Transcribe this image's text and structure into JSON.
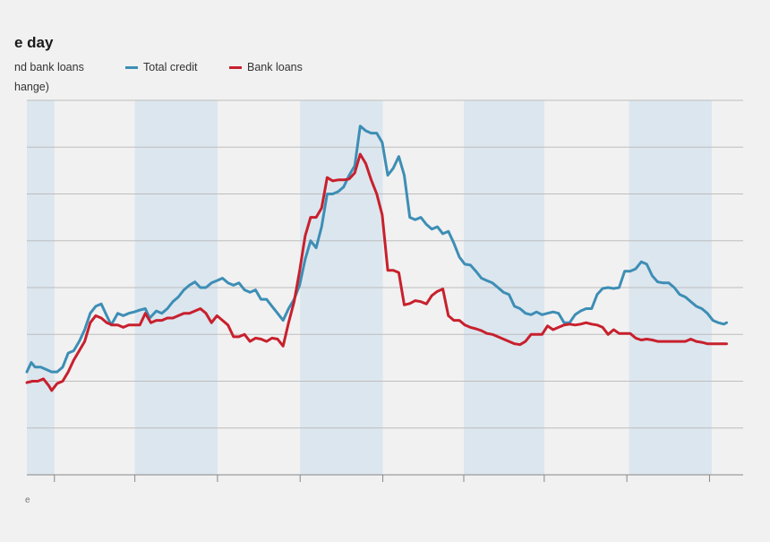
{
  "header": {
    "title": "e day",
    "legend_desc": "nd bank loans",
    "legend_unit": "hange)"
  },
  "footer": {
    "source": "e"
  },
  "colors": {
    "total_credit": "#3d8eb5",
    "bank_loans": "#c8202d",
    "shade": "#dce6ee",
    "grid": "#bdbdbd"
  },
  "chart_data": {
    "type": "line",
    "title": "e day",
    "xlabel": "",
    "ylabel": "",
    "x_range": [
      0,
      130
    ],
    "ylim": [
      0,
      8
    ],
    "grid_y": [
      1,
      2,
      3,
      4,
      5,
      6,
      7,
      8
    ],
    "x_ticks": [
      5,
      19.6,
      34.6,
      49.6,
      64.6,
      79.3,
      93.9,
      108.9,
      123.9
    ],
    "shaded_periods": [
      [
        0,
        5
      ],
      [
        19.6,
        34.6
      ],
      [
        49.6,
        64.6
      ],
      [
        79.3,
        93.9
      ],
      [
        109.3,
        124.3
      ]
    ],
    "series": [
      {
        "name": "Total credit",
        "color": "#3d8eb5",
        "values": [
          [
            0,
            2.2
          ],
          [
            0.8,
            2.4
          ],
          [
            1.5,
            2.3
          ],
          [
            2.5,
            2.3
          ],
          [
            3.5,
            2.25
          ],
          [
            4.5,
            2.2
          ],
          [
            5.5,
            2.2
          ],
          [
            6.5,
            2.3
          ],
          [
            7.5,
            2.6
          ],
          [
            8.5,
            2.65
          ],
          [
            9.5,
            2.85
          ],
          [
            10.5,
            3.1
          ],
          [
            11.5,
            3.45
          ],
          [
            12.5,
            3.6
          ],
          [
            13.5,
            3.65
          ],
          [
            14.5,
            3.4
          ],
          [
            15.3,
            3.2
          ],
          [
            16.5,
            3.45
          ],
          [
            17.5,
            3.4
          ],
          [
            18.5,
            3.45
          ],
          [
            19.5,
            3.48
          ],
          [
            20.5,
            3.52
          ],
          [
            21.5,
            3.55
          ],
          [
            22.3,
            3.35
          ],
          [
            23.5,
            3.5
          ],
          [
            24.5,
            3.45
          ],
          [
            25.5,
            3.55
          ],
          [
            26.5,
            3.7
          ],
          [
            27.5,
            3.8
          ],
          [
            28.5,
            3.95
          ],
          [
            29.5,
            4.05
          ],
          [
            30.5,
            4.12
          ],
          [
            31.5,
            4.0
          ],
          [
            32.5,
            4.0
          ],
          [
            33.5,
            4.1
          ],
          [
            34.5,
            4.15
          ],
          [
            35.5,
            4.2
          ],
          [
            36.5,
            4.1
          ],
          [
            37.5,
            4.05
          ],
          [
            38.5,
            4.1
          ],
          [
            39.5,
            3.95
          ],
          [
            40.5,
            3.9
          ],
          [
            41.5,
            3.95
          ],
          [
            42.5,
            3.75
          ],
          [
            43.5,
            3.75
          ],
          [
            44.5,
            3.6
          ],
          [
            45.5,
            3.45
          ],
          [
            46.5,
            3.3
          ],
          [
            47.5,
            3.55
          ],
          [
            48.5,
            3.75
          ],
          [
            49.5,
            4.05
          ],
          [
            50.5,
            4.6
          ],
          [
            51.5,
            5.0
          ],
          [
            52.5,
            4.85
          ],
          [
            53.5,
            5.3
          ],
          [
            54.5,
            6.0
          ],
          [
            55.5,
            6.0
          ],
          [
            56.5,
            6.05
          ],
          [
            57.5,
            6.15
          ],
          [
            58.5,
            6.4
          ],
          [
            59.5,
            6.6
          ],
          [
            60.5,
            7.45
          ],
          [
            61.5,
            7.35
          ],
          [
            62.5,
            7.3
          ],
          [
            63.5,
            7.3
          ],
          [
            64.5,
            7.1
          ],
          [
            65.5,
            6.4
          ],
          [
            66.5,
            6.55
          ],
          [
            67.5,
            6.8
          ],
          [
            68.5,
            6.4
          ],
          [
            69.5,
            5.5
          ],
          [
            70.5,
            5.45
          ],
          [
            71.5,
            5.5
          ],
          [
            72.5,
            5.35
          ],
          [
            73.5,
            5.25
          ],
          [
            74.5,
            5.3
          ],
          [
            75.5,
            5.15
          ],
          [
            76.5,
            5.2
          ],
          [
            77.5,
            4.95
          ],
          [
            78.5,
            4.65
          ],
          [
            79.5,
            4.5
          ],
          [
            80.5,
            4.48
          ],
          [
            81.5,
            4.35
          ],
          [
            82.5,
            4.2
          ],
          [
            83.5,
            4.15
          ],
          [
            84.5,
            4.1
          ],
          [
            85.5,
            4.0
          ],
          [
            86.5,
            3.9
          ],
          [
            87.5,
            3.85
          ],
          [
            88.5,
            3.6
          ],
          [
            89.5,
            3.55
          ],
          [
            90.5,
            3.45
          ],
          [
            91.5,
            3.42
          ],
          [
            92.5,
            3.48
          ],
          [
            93.5,
            3.42
          ],
          [
            94.5,
            3.45
          ],
          [
            95.5,
            3.48
          ],
          [
            96.5,
            3.45
          ],
          [
            97.5,
            3.25
          ],
          [
            98.5,
            3.25
          ],
          [
            99.5,
            3.42
          ],
          [
            100.5,
            3.5
          ],
          [
            101.5,
            3.55
          ],
          [
            102.5,
            3.55
          ],
          [
            103.5,
            3.85
          ],
          [
            104.5,
            3.98
          ],
          [
            105.5,
            4.0
          ],
          [
            106.5,
            3.98
          ],
          [
            107.5,
            4.0
          ],
          [
            108.5,
            4.35
          ],
          [
            109.5,
            4.35
          ],
          [
            110.5,
            4.4
          ],
          [
            111.5,
            4.55
          ],
          [
            112.5,
            4.5
          ],
          [
            113.5,
            4.25
          ],
          [
            114.5,
            4.12
          ],
          [
            115.5,
            4.1
          ],
          [
            116.5,
            4.1
          ],
          [
            117.5,
            4.0
          ],
          [
            118.5,
            3.85
          ],
          [
            119.5,
            3.8
          ],
          [
            120.5,
            3.7
          ],
          [
            121.5,
            3.6
          ],
          [
            122.5,
            3.55
          ],
          [
            123.5,
            3.45
          ],
          [
            124.5,
            3.3
          ],
          [
            125.5,
            3.25
          ],
          [
            126.5,
            3.22
          ],
          [
            127,
            3.25
          ]
        ]
      },
      {
        "name": "Bank loans",
        "color": "#c8202d",
        "values": [
          [
            0,
            1.97
          ],
          [
            1,
            2.0
          ],
          [
            2,
            2.0
          ],
          [
            3,
            2.05
          ],
          [
            4,
            1.9
          ],
          [
            4.5,
            1.8
          ],
          [
            5.5,
            1.95
          ],
          [
            6.5,
            2.0
          ],
          [
            7.5,
            2.2
          ],
          [
            8.5,
            2.45
          ],
          [
            9.5,
            2.65
          ],
          [
            10.5,
            2.85
          ],
          [
            11.5,
            3.25
          ],
          [
            12.5,
            3.4
          ],
          [
            13.5,
            3.35
          ],
          [
            14.5,
            3.25
          ],
          [
            15.5,
            3.2
          ],
          [
            16.5,
            3.2
          ],
          [
            17.5,
            3.15
          ],
          [
            18.5,
            3.2
          ],
          [
            19.5,
            3.2
          ],
          [
            20.5,
            3.2
          ],
          [
            21.5,
            3.45
          ],
          [
            22.5,
            3.25
          ],
          [
            23.5,
            3.3
          ],
          [
            24.5,
            3.3
          ],
          [
            25.5,
            3.35
          ],
          [
            26.5,
            3.35
          ],
          [
            27.5,
            3.4
          ],
          [
            28.5,
            3.45
          ],
          [
            29.5,
            3.45
          ],
          [
            30.5,
            3.5
          ],
          [
            31.5,
            3.55
          ],
          [
            32.5,
            3.45
          ],
          [
            33.5,
            3.25
          ],
          [
            34.5,
            3.4
          ],
          [
            35.5,
            3.3
          ],
          [
            36.5,
            3.2
          ],
          [
            37.5,
            2.95
          ],
          [
            38.5,
            2.95
          ],
          [
            39.5,
            3.0
          ],
          [
            40.5,
            2.85
          ],
          [
            41.5,
            2.92
          ],
          [
            42.5,
            2.9
          ],
          [
            43.5,
            2.85
          ],
          [
            44.5,
            2.92
          ],
          [
            45.5,
            2.9
          ],
          [
            46.5,
            2.75
          ],
          [
            47.5,
            3.25
          ],
          [
            48.5,
            3.7
          ],
          [
            49.5,
            4.35
          ],
          [
            50.5,
            5.1
          ],
          [
            51.5,
            5.5
          ],
          [
            52.5,
            5.5
          ],
          [
            53.5,
            5.7
          ],
          [
            54.5,
            6.35
          ],
          [
            55.5,
            6.28
          ],
          [
            56.5,
            6.3
          ],
          [
            57.5,
            6.3
          ],
          [
            58.5,
            6.32
          ],
          [
            59.5,
            6.45
          ],
          [
            60.5,
            6.85
          ],
          [
            61.5,
            6.65
          ],
          [
            62.5,
            6.3
          ],
          [
            63.5,
            6.0
          ],
          [
            64.5,
            5.55
          ],
          [
            65.5,
            4.37
          ],
          [
            66.5,
            4.37
          ],
          [
            67.5,
            4.32
          ],
          [
            68.5,
            3.63
          ],
          [
            69.5,
            3.66
          ],
          [
            70.5,
            3.72
          ],
          [
            71.5,
            3.7
          ],
          [
            72.5,
            3.65
          ],
          [
            73.5,
            3.83
          ],
          [
            74.5,
            3.92
          ],
          [
            75.5,
            3.97
          ],
          [
            76.5,
            3.4
          ],
          [
            77.5,
            3.3
          ],
          [
            78.5,
            3.3
          ],
          [
            79.5,
            3.2
          ],
          [
            80.5,
            3.15
          ],
          [
            81.5,
            3.12
          ],
          [
            82.5,
            3.08
          ],
          [
            83.5,
            3.02
          ],
          [
            84.5,
            3.0
          ],
          [
            85.5,
            2.95
          ],
          [
            86.5,
            2.9
          ],
          [
            87.5,
            2.85
          ],
          [
            88.5,
            2.8
          ],
          [
            89.5,
            2.78
          ],
          [
            90.5,
            2.85
          ],
          [
            91.5,
            3.0
          ],
          [
            92.5,
            3.0
          ],
          [
            93.5,
            3.0
          ],
          [
            94.5,
            3.18
          ],
          [
            95.5,
            3.1
          ],
          [
            96.5,
            3.15
          ],
          [
            97.5,
            3.2
          ],
          [
            98.5,
            3.22
          ],
          [
            99.5,
            3.2
          ],
          [
            100.5,
            3.22
          ],
          [
            101.5,
            3.25
          ],
          [
            102.5,
            3.22
          ],
          [
            103.5,
            3.2
          ],
          [
            104.5,
            3.15
          ],
          [
            105.5,
            3.0
          ],
          [
            106.5,
            3.1
          ],
          [
            107.5,
            3.02
          ],
          [
            108.5,
            3.02
          ],
          [
            109.5,
            3.02
          ],
          [
            110.5,
            2.92
          ],
          [
            111.5,
            2.88
          ],
          [
            112.5,
            2.9
          ],
          [
            113.5,
            2.88
          ],
          [
            114.5,
            2.85
          ],
          [
            115.5,
            2.85
          ],
          [
            116.5,
            2.85
          ],
          [
            117.5,
            2.85
          ],
          [
            118.5,
            2.85
          ],
          [
            119.5,
            2.85
          ],
          [
            120.5,
            2.9
          ],
          [
            121.5,
            2.85
          ],
          [
            122.5,
            2.83
          ],
          [
            123.5,
            2.8
          ],
          [
            124.5,
            2.8
          ],
          [
            125.5,
            2.8
          ],
          [
            127,
            2.8
          ]
        ]
      }
    ]
  }
}
